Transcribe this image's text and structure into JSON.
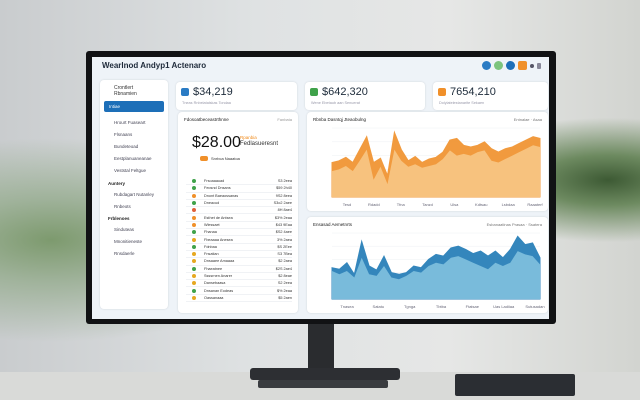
{
  "app": {
    "title": "Wearlnod Andyp1 Actenaro"
  },
  "sidebar": {
    "header": [
      "Crontlert",
      "Rbnamien"
    ],
    "active": "Intiae",
    "items": [
      {
        "label": "Hrourt Fuaseart",
        "type": "item"
      },
      {
        "label": "Flsnaans",
        "type": "item"
      },
      {
        "label": "Bundeteoad",
        "type": "item"
      },
      {
        "label": "Eestplanuaneanae",
        "type": "item"
      },
      {
        "label": "Veststal Feltgue",
        "type": "item"
      },
      {
        "label": "Auntery",
        "type": "section"
      },
      {
        "label": "Rubdagart Nutanley",
        "type": "item"
      },
      {
        "label": "Rnbeots",
        "type": "item"
      },
      {
        "label": "Frblenoes",
        "type": "section"
      },
      {
        "label": "Sinduteas",
        "type": "item"
      },
      {
        "label": "Mnonitieneste",
        "type": "item"
      },
      {
        "label": "Rnsdaerle",
        "type": "item"
      }
    ]
  },
  "kpis": [
    {
      "value": "$34,219",
      "sub": "Tneas Rnbelatalskas Tondaa",
      "color": "#2a7bc4"
    },
    {
      "value": "$642,320",
      "sub": "Wene Ebetaub aan Senuerat",
      "color": "#3fa24a"
    },
    {
      "value": "7654,210",
      "sub": "Dolylatelestanarite Sekaen",
      "color": "#f0902a"
    }
  ],
  "left_panel": {
    "title": "Fdosoatbeceastrthnne",
    "link": "Fanbata",
    "amount": "$28.00",
    "amount_note": "Rpanbia",
    "amount_label": "Fedlasueresnt",
    "tag": "Snrbca Naaatoa",
    "rows": [
      {
        "name": "Frsoaaauad",
        "value": "S3 2eea",
        "color": "#3fa24a"
      },
      {
        "name": "Feosnd Dnsans",
        "value": "$59 2h40",
        "color": "#3fa24a"
      },
      {
        "name": "Dnont Baeaossanas",
        "value": "9S2 8eea",
        "color": "#f0902a"
      },
      {
        "name": "Dneacud",
        "value": "S3o2 2aee",
        "color": "#3fa24a"
      },
      {
        "name": "",
        "value": "8H 8ae4",
        "color": "#e0603a"
      },
      {
        "name": "Esthet de Antsea",
        "value": "$3% 2eaa",
        "color": "#f0902a"
      },
      {
        "name": "Wlessaet",
        "value": "$43 9Eaa",
        "color": "#f0902a"
      },
      {
        "name": "Fhanaa",
        "value": "$S2 4aee",
        "color": "#3fa24a"
      },
      {
        "name": "Fbeaaaa Anesea",
        "value": "3% 2aea",
        "color": "#e6a820"
      },
      {
        "name": "Fdnbaa",
        "value": "$S 2Eee",
        "color": "#3fa24a"
      },
      {
        "name": "Fnsatian",
        "value": "S3 7Bea",
        "color": "#e6a820"
      },
      {
        "name": "Dnsaaee Amaaaa",
        "value": "$2 2aea",
        "color": "#e6a820"
      },
      {
        "name": "Fhaeatnee",
        "value": "$2S 2ae4",
        "color": "#3fa24a"
      },
      {
        "name": "Ssssrnen Anarer",
        "value": "$2 8eae",
        "color": "#e6a820"
      },
      {
        "name": "Dansebaasa",
        "value": "S2 2eea",
        "color": "#e6a820"
      },
      {
        "name": "Dnsanan Eodeas",
        "value": "$% 2eaa",
        "color": "#3fa24a"
      },
      {
        "name": "Oassanaaa",
        "value": "$5 2aen",
        "color": "#e6a820"
      }
    ]
  },
  "chart_data": [
    {
      "type": "area",
      "title": "Rbnba Dasntqj Jteaobulng",
      "legend": [
        "Entnalae",
        "Asaa"
      ],
      "colors": [
        "#f0902a",
        "#f8c98a"
      ],
      "xticks": [
        "Tesd",
        "Rdadd",
        "Tfna",
        "Tanzd",
        "Ulsa",
        "Kdtsau",
        "Lsbdaa",
        "Raaaterf"
      ],
      "series": [
        [
          40,
          42,
          46,
          40,
          55,
          70,
          40,
          45,
          25,
          75,
          55,
          42,
          47,
          40,
          44,
          46,
          52,
          66,
          68,
          60,
          58,
          60,
          64,
          56,
          52,
          56,
          58,
          62,
          66,
          70,
          68
        ],
        [
          30,
          32,
          36,
          30,
          42,
          55,
          20,
          35,
          15,
          55,
          42,
          35,
          38,
          34,
          36,
          38,
          44,
          54,
          48,
          50,
          48,
          52,
          54,
          42,
          40,
          44,
          48,
          52,
          56,
          60,
          58
        ]
      ]
    },
    {
      "type": "area",
      "title": "Ensasad Aemetnrts",
      "legend": [
        "Esbanaatlnas Prasaa",
        "Ssatera"
      ],
      "colors": [
        "#1f7ab5",
        "#86c4e0"
      ],
      "xticks": [
        "Tnasea",
        "Satatu",
        "Tgnga",
        "Tbtba",
        "Ftatsae",
        "Uas Ladiiaa",
        "Sutusadan"
      ],
      "series": [
        [
          38,
          36,
          44,
          30,
          70,
          40,
          35,
          52,
          32,
          30,
          32,
          40,
          38,
          48,
          54,
          52,
          62,
          64,
          60,
          55,
          58,
          52,
          58,
          50,
          60,
          76,
          66,
          68,
          50
        ],
        [
          34,
          30,
          34,
          26,
          50,
          30,
          28,
          40,
          26,
          24,
          28,
          34,
          32,
          40,
          44,
          42,
          50,
          52,
          48,
          44,
          40,
          36,
          44,
          40,
          44,
          58,
          54,
          52,
          42
        ]
      ]
    }
  ]
}
